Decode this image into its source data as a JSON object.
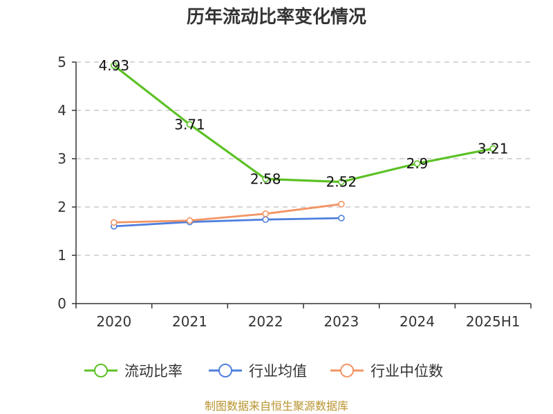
{
  "chart_data": {
    "type": "line",
    "title": "历年流动比率变化情况",
    "xlabel": "",
    "ylabel": "",
    "categories": [
      "2020",
      "2021",
      "2022",
      "2023",
      "2024",
      "2025H1"
    ],
    "ylim": [
      0,
      5
    ],
    "yticks": [
      0,
      1,
      2,
      3,
      4,
      5
    ],
    "grid": true,
    "legend_position": "bottom-center",
    "series": [
      {
        "name": "流动比率",
        "color": "#5cc125",
        "values": [
          4.93,
          3.71,
          2.58,
          2.52,
          2.9,
          3.21
        ],
        "labels": [
          "4.93",
          "3.71",
          "2.58",
          "2.52",
          "2.9",
          "3.21"
        ]
      },
      {
        "name": "行业均值",
        "color": "#4f7fdd",
        "values": [
          1.6,
          1.69,
          1.74,
          1.77,
          null,
          null
        ]
      },
      {
        "name": "行业中位数",
        "color": "#f29463",
        "values": [
          1.68,
          1.72,
          1.86,
          2.06,
          null,
          null
        ]
      }
    ]
  },
  "source": "制图数据来自恒生聚源数据库"
}
